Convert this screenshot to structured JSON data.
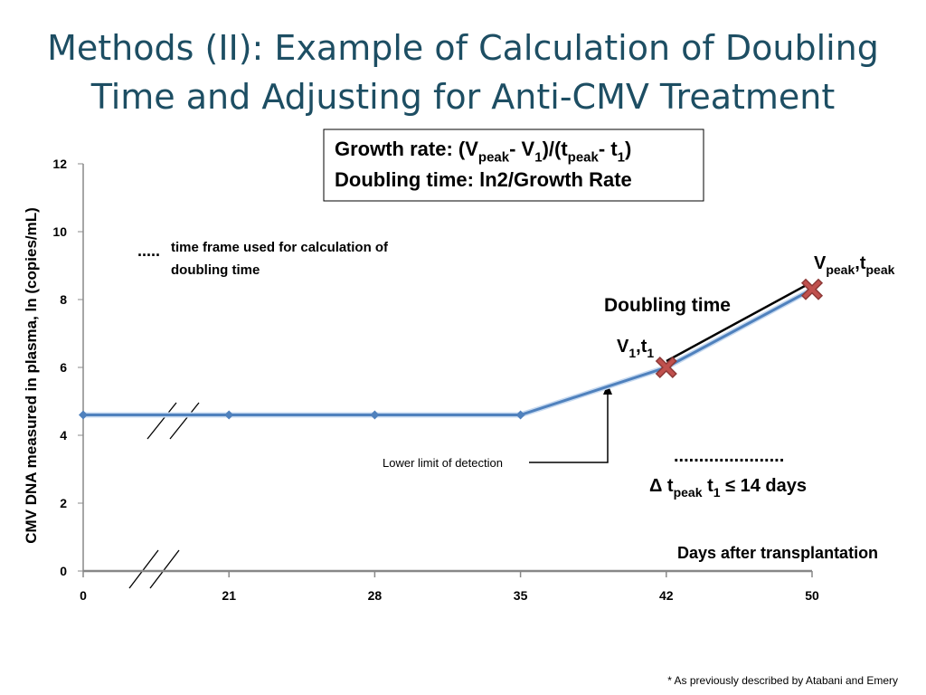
{
  "title": "Methods (II): Example of Calculation of Doubling Time and Adjusting for  Anti-CMV Treatment",
  "footnote": "* As previously described by Atabani and Emery",
  "chart_data": {
    "type": "line",
    "categories": [
      "0",
      "21",
      "28",
      "35",
      "42",
      "50"
    ],
    "series": [
      {
        "color": "#4f81bd",
        "values": [
          4.6,
          4.6,
          4.6,
          4.6,
          6,
          8.3
        ],
        "markers": [
          "diamond",
          "diamond",
          "diamond",
          "diamond",
          "cross",
          "cross"
        ],
        "marker_color": "#c0504d"
      }
    ],
    "ylim": [
      0,
      12
    ],
    "yticks": [
      0,
      2,
      4,
      6,
      8,
      10,
      12
    ],
    "x_label": "Days after transplantation",
    "y_label": "CMV DNA measured in plasma, ln (copies/mL)",
    "formula": {
      "line1": [
        "Growth rate: (V",
        "peak",
        "- V",
        "1",
        ")/(t",
        "peak",
        "- t",
        "1",
        ")"
      ],
      "line2": [
        "Doubling time: ln2/Growth Rate"
      ]
    },
    "annotations": {
      "dots_legend": ".....",
      "dots_legend_text": [
        "time frame used for calculation of",
        "doubling time"
      ],
      "peak_label": [
        "V",
        "peak",
        ",t",
        "peak"
      ],
      "doubling_time": "Doubling time",
      "v1_label": [
        "V",
        "1",
        ",t",
        "1"
      ],
      "lower_limit": "Lower limit of detection",
      "interval_dots": "......................",
      "interval": [
        "Δ t",
        "peak",
        " t",
        "1",
        " ≤ 14 days"
      ]
    }
  }
}
